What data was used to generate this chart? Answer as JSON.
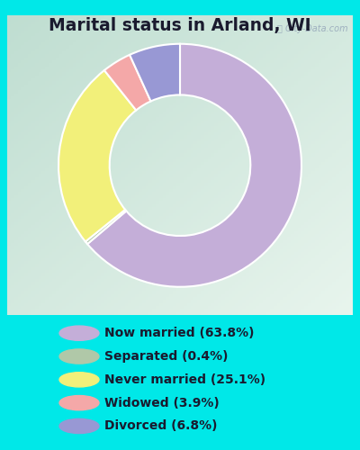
{
  "title": "Marital status in Arland, WI",
  "slices": [
    {
      "label": "Now married (63.8%)",
      "value": 63.8,
      "color": "#c4aed8"
    },
    {
      "label": "Separated (0.4%)",
      "value": 0.4,
      "color": "#b0c8a8"
    },
    {
      "label": "Never married (25.1%)",
      "value": 25.1,
      "color": "#f2f07a"
    },
    {
      "label": "Widowed (3.9%)",
      "value": 3.9,
      "color": "#f4a8a8"
    },
    {
      "label": "Divorced (6.8%)",
      "value": 6.8,
      "color": "#9898d4"
    }
  ],
  "bg_outer": "#00e8e8",
  "bg_chart_tl": "#c8dfd0",
  "bg_chart_br": "#e8f4ee",
  "title_color": "#1a1a2e",
  "title_fontsize": 13.5,
  "legend_fontsize": 10,
  "watermark": "City-Data.com",
  "donut_width": 0.42,
  "start_angle": 90
}
